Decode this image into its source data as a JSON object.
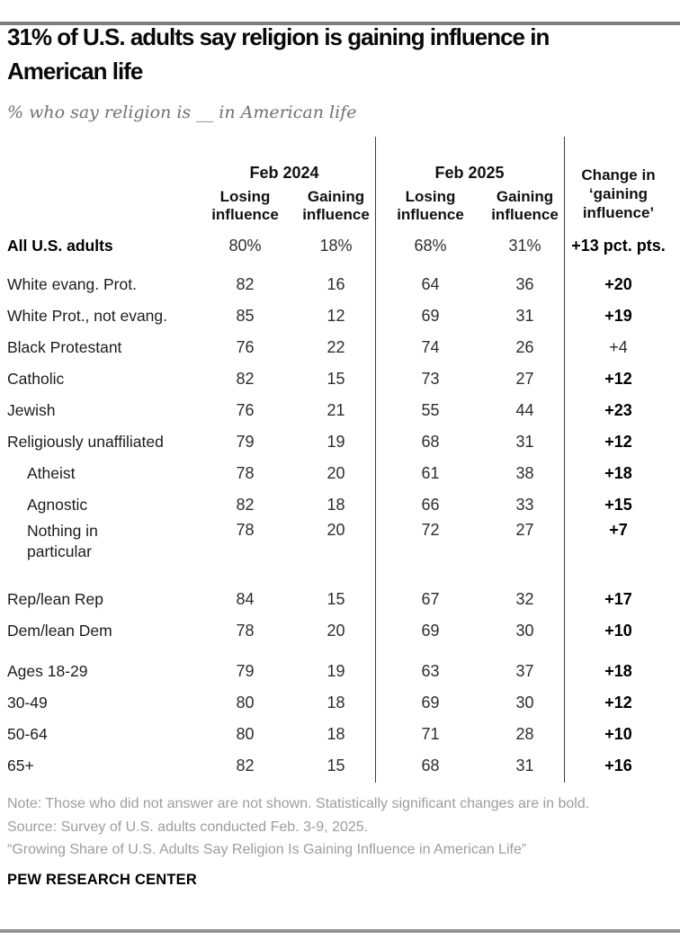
{
  "header": {
    "title": "31% of U.S. adults say religion is gaining influence in\nAmerican life",
    "subtitle": "% who say religion is __ in American life"
  },
  "colors": {
    "top_bar": "#7d7d7d",
    "bottom_bar": "#939393",
    "note_gray": "#9d9d9d",
    "subtitle_gray": "#767069",
    "text_dark": "#1c1c1c"
  },
  "chart_data": {
    "type": "table",
    "title": "31% of U.S. adults say religion is gaining influence in American life",
    "subtitle": "% who say religion is __ in American life",
    "column_groups": [
      {
        "label": "Feb 2024",
        "columns": [
          "Losing influence",
          "Gaining influence"
        ]
      },
      {
        "label": "Feb 2025",
        "columns": [
          "Losing influence",
          "Gaining influence"
        ]
      }
    ],
    "change_column": "Change in\n‘gaining\ninfluence’",
    "rows": [
      {
        "label": "All U.S. adults",
        "bold_label": true,
        "pct": true,
        "values": [
          80,
          18,
          68,
          31
        ],
        "change": 13,
        "change_suffix": " pct. pts.",
        "significant": true
      },
      {
        "label": "White evang. Prot.",
        "values": [
          82,
          16,
          64,
          36
        ],
        "change": 20,
        "significant": true,
        "gap_before": true
      },
      {
        "label": "White Prot., not evang.",
        "values": [
          85,
          12,
          69,
          31
        ],
        "change": 19,
        "significant": true
      },
      {
        "label": "Black Protestant",
        "values": [
          76,
          22,
          74,
          26
        ],
        "change": 4,
        "significant": false
      },
      {
        "label": "Catholic",
        "values": [
          82,
          15,
          73,
          27
        ],
        "change": 12,
        "significant": true
      },
      {
        "label": "Jewish",
        "values": [
          76,
          21,
          55,
          44
        ],
        "change": 23,
        "significant": true
      },
      {
        "label": "Religiously unaffiliated",
        "values": [
          79,
          19,
          68,
          31
        ],
        "change": 12,
        "significant": true
      },
      {
        "label": "Atheist",
        "indent": true,
        "values": [
          78,
          20,
          61,
          38
        ],
        "change": 18,
        "significant": true
      },
      {
        "label": "Agnostic",
        "indent": true,
        "values": [
          82,
          18,
          66,
          33
        ],
        "change": 15,
        "significant": true
      },
      {
        "label": "Nothing in\nparticular",
        "indent": true,
        "tall": true,
        "values": [
          78,
          20,
          72,
          27
        ],
        "change": 7,
        "significant": true
      },
      {
        "label": "Rep/lean Rep",
        "values": [
          84,
          15,
          67,
          32
        ],
        "change": 17,
        "significant": true,
        "gap_before": true
      },
      {
        "label": "Dem/lean Dem",
        "values": [
          78,
          20,
          69,
          30
        ],
        "change": 10,
        "significant": true
      },
      {
        "label": "Ages 18-29",
        "values": [
          79,
          19,
          63,
          37
        ],
        "change": 18,
        "significant": true,
        "gap_before": true
      },
      {
        "label": "30-49",
        "values": [
          80,
          18,
          69,
          30
        ],
        "change": 12,
        "significant": true
      },
      {
        "label": "50-64",
        "values": [
          80,
          18,
          71,
          28
        ],
        "change": 10,
        "significant": true
      },
      {
        "label": "65+",
        "values": [
          82,
          15,
          68,
          31
        ],
        "change": 16,
        "significant": true
      }
    ]
  },
  "footer": {
    "note": "Note: Those who did not answer are not shown. Statistically significant changes are in bold.",
    "source": "Source: Survey of U.S. adults conducted Feb. 3-9, 2025.",
    "quote": "“Growing Share of U.S. Adults Say Religion Is Gaining Influence in American Life”",
    "brand": "PEW RESEARCH CENTER"
  }
}
